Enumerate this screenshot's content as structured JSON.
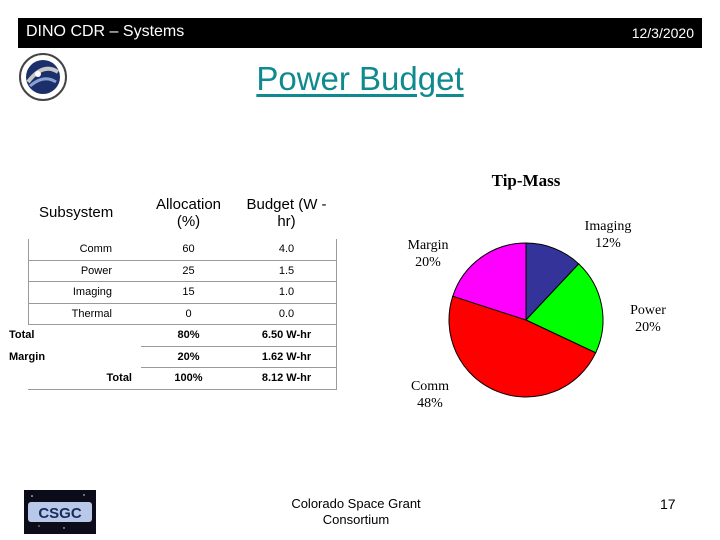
{
  "header": {
    "title": "DINO CDR – Systems",
    "date": "12/3/2020"
  },
  "slide": {
    "title": "Power Budget"
  },
  "table": {
    "headers": {
      "subsystem": "Subsystem",
      "allocation": "Allocation (%)",
      "budget": "Budget (W -hr)"
    },
    "rows": [
      {
        "name": "Comm",
        "allocation": "60",
        "budget": "4.0"
      },
      {
        "name": "Power",
        "allocation": "25",
        "budget": "1.5"
      },
      {
        "name": "Imaging",
        "allocation": "15",
        "budget": "1.0"
      },
      {
        "name": "Thermal",
        "allocation": "0",
        "budget": "0.0"
      }
    ],
    "totals": [
      {
        "name": "Total",
        "allocation": "80%",
        "budget": "6.50 W-hr"
      },
      {
        "name": "Margin",
        "allocation": "20%",
        "budget": "1.62 W-hr"
      },
      {
        "name": "Total",
        "allocation": "100%",
        "budget": "8.12 W-hr"
      }
    ]
  },
  "chart_data": {
    "type": "pie",
    "title": "Tip-Mass",
    "slices": [
      {
        "label": "Imaging",
        "value": 12,
        "display": "12%",
        "color": "#333399"
      },
      {
        "label": "Power",
        "value": 20,
        "display": "20%",
        "color": "#00ff00"
      },
      {
        "label": "Comm",
        "value": 48,
        "display": "48%",
        "color": "#ff0000"
      },
      {
        "label": "Margin",
        "value": 20,
        "display": "20%",
        "color": "#ff00ff"
      }
    ]
  },
  "footer": {
    "org_line1": "Colorado Space Grant",
    "org_line2": "Consortium",
    "page": "17",
    "logo_text": "CSGC"
  }
}
